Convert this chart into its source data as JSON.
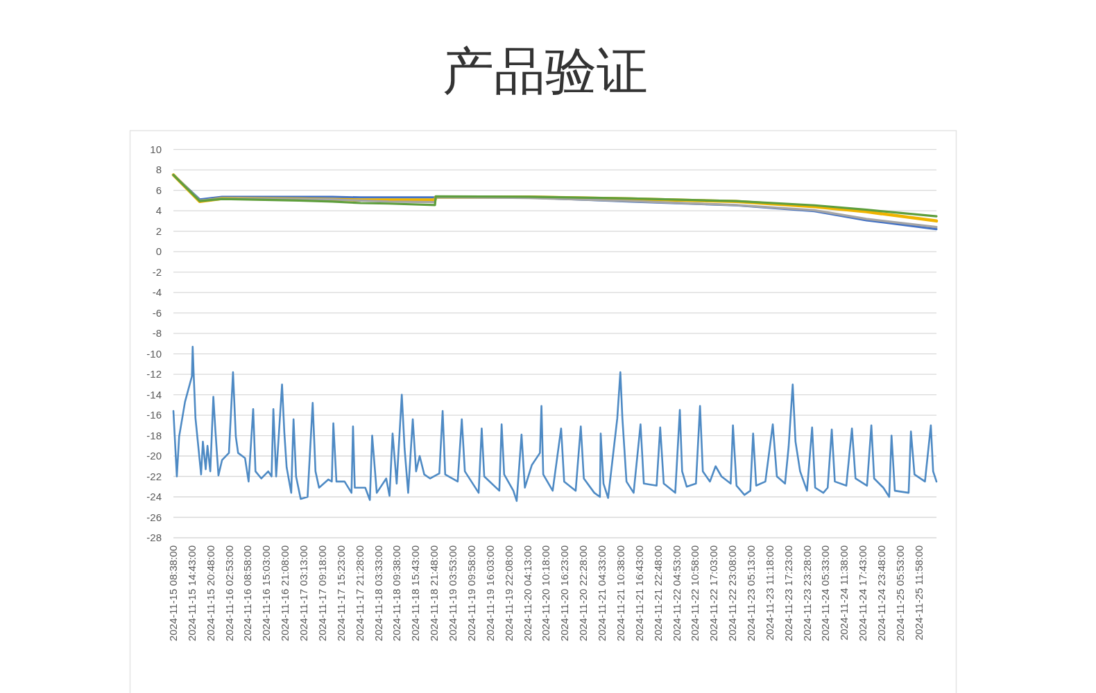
{
  "chart_data": {
    "type": "line",
    "title": "产品验证",
    "xlim": [
      "2024-11-15T08:38",
      "2024-11-25T17:40"
    ],
    "xticks": [
      {
        "value": "2024-11-15T08:38",
        "label": "2024-11-15 08:38:00"
      },
      {
        "value": "2024-11-15T14:43",
        "label": "2024-11-15 14:43:00"
      },
      {
        "value": "2024-11-15T20:48",
        "label": "2024-11-15 20:48:00"
      },
      {
        "value": "2024-11-16T02:53",
        "label": "2024-11-16 02:53:00"
      },
      {
        "value": "2024-11-16T08:58",
        "label": "2024-11-16 08:58:00"
      },
      {
        "value": "2024-11-16T15:03",
        "label": "2024-11-16 15:03:00"
      },
      {
        "value": "2024-11-16T21:08",
        "label": "2024-11-16 21:08:00"
      },
      {
        "value": "2024-11-17T03:13",
        "label": "2024-11-17 03:13:00"
      },
      {
        "value": "2024-11-17T09:18",
        "label": "2024-11-17 09:18:00"
      },
      {
        "value": "2024-11-17T15:23",
        "label": "2024-11-17 15:23:00"
      },
      {
        "value": "2024-11-17T21:28",
        "label": "2024-11-17 21:28:00"
      },
      {
        "value": "2024-11-18T03:33",
        "label": "2024-11-18 03:33:00"
      },
      {
        "value": "2024-11-18T09:38",
        "label": "2024-11-18 09:38:00"
      },
      {
        "value": "2024-11-18T15:43",
        "label": "2024-11-18 15:43:00"
      },
      {
        "value": "2024-11-18T21:48",
        "label": "2024-11-18 21:48:00"
      },
      {
        "value": "2024-11-19T03:53",
        "label": "2024-11-19 03:53:00"
      },
      {
        "value": "2024-11-19T09:58",
        "label": "2024-11-19 09:58:00"
      },
      {
        "value": "2024-11-19T16:03",
        "label": "2024-11-19 16:03:00"
      },
      {
        "value": "2024-11-19T22:08",
        "label": "2024-11-19 22:08:00"
      },
      {
        "value": "2024-11-20T04:13",
        "label": "2024-11-20 04:13:00"
      },
      {
        "value": "2024-11-20T10:18",
        "label": "2024-11-20 10:18:00"
      },
      {
        "value": "2024-11-20T16:23",
        "label": "2024-11-20 16:23:00"
      },
      {
        "value": "2024-11-20T22:28",
        "label": "2024-11-20 22:28:00"
      },
      {
        "value": "2024-11-21T04:33",
        "label": "2024-11-21 04:33:00"
      },
      {
        "value": "2024-11-21T10:38",
        "label": "2024-11-21 10:38:00"
      },
      {
        "value": "2024-11-21T16:43",
        "label": "2024-11-21 16:43:00"
      },
      {
        "value": "2024-11-21T22:48",
        "label": "2024-11-21 22:48:00"
      },
      {
        "value": "2024-11-22T04:53",
        "label": "2024-11-22 04:53:00"
      },
      {
        "value": "2024-11-22T10:58",
        "label": "2024-11-22 10:58:00"
      },
      {
        "value": "2024-11-22T17:03",
        "label": "2024-11-22 17:03:00"
      },
      {
        "value": "2024-11-22T23:08",
        "label": "2024-11-22 23:08:00"
      },
      {
        "value": "2024-11-23T05:13",
        "label": "2024-11-23 05:13:00"
      },
      {
        "value": "2024-11-23T11:18",
        "label": "2024-11-23 11:18:00"
      },
      {
        "value": "2024-11-23T17:23",
        "label": "2024-11-23 17:23:00"
      },
      {
        "value": "2024-11-23T23:28",
        "label": "2024-11-23 23:28:00"
      },
      {
        "value": "2024-11-24T05:33",
        "label": "2024-11-24 05:33:00"
      },
      {
        "value": "2024-11-24T11:38",
        "label": "2024-11-24 11:38:00"
      },
      {
        "value": "2024-11-24T17:43",
        "label": "2024-11-24 17:43:00"
      },
      {
        "value": "2024-11-24T23:48",
        "label": "2024-11-24 23:48:00"
      },
      {
        "value": "2024-11-25T05:53",
        "label": "2024-11-25 05:53:00"
      },
      {
        "value": "2024-11-25T11:58",
        "label": "2024-11-25 11:58:00"
      }
    ],
    "ylim": [
      -28,
      10
    ],
    "yticks": [
      10,
      8,
      6,
      4,
      2,
      0,
      -2,
      -4,
      -6,
      -8,
      -10,
      -12,
      -14,
      -16,
      -18,
      -20,
      -22,
      -24,
      -26,
      -28
    ],
    "grid": "y",
    "series": [
      {
        "color": "#4e8ac4",
        "x": [
          "2024-11-15T08:38",
          "2024-11-15T09:45",
          "2024-11-15T10:30",
          "2024-11-15T12:25",
          "2024-11-15T14:40",
          "2024-11-15T14:55",
          "2024-11-15T15:15",
          "2024-11-15T15:50",
          "2024-11-15T17:40",
          "2024-11-15T18:15",
          "2024-11-15T19:10",
          "2024-11-15T19:45",
          "2024-11-15T20:40",
          "2024-11-15T21:40",
          "2024-11-15T22:20",
          "2024-11-15T23:20",
          "2024-11-16T00:30",
          "2024-11-16T02:45",
          "2024-11-16T04:05",
          "2024-11-16T05:00",
          "2024-11-16T05:45",
          "2024-11-16T08:00",
          "2024-11-16T09:10",
          "2024-11-16T10:40",
          "2024-11-16T11:25",
          "2024-11-16T13:20",
          "2024-11-16T15:35",
          "2024-11-16T16:40",
          "2024-11-16T17:15",
          "2024-11-16T18:10",
          "2024-11-16T20:05",
          "2024-11-16T20:50",
          "2024-11-16T21:35",
          "2024-11-16T23:05",
          "2024-11-16T23:50",
          "2024-11-17T00:40",
          "2024-11-17T02:10",
          "2024-11-17T04:25",
          "2024-11-17T06:05",
          "2024-11-17T07:00",
          "2024-11-17T08:10",
          "2024-11-17T11:10",
          "2024-11-17T12:20",
          "2024-11-17T12:50",
          "2024-11-17T13:50",
          "2024-11-17T16:30",
          "2024-11-17T18:45",
          "2024-11-17T19:15",
          "2024-11-17T19:50",
          "2024-11-17T23:15",
          "2024-11-18T00:45",
          "2024-11-18T01:30",
          "2024-11-18T03:00",
          "2024-11-18T06:05",
          "2024-11-18T07:10",
          "2024-11-18T08:10",
          "2024-11-18T09:30",
          "2024-11-18T11:10",
          "2024-11-18T12:05",
          "2024-11-18T13:15",
          "2024-11-18T14:45",
          "2024-11-18T15:50",
          "2024-11-18T17:00",
          "2024-11-18T18:30",
          "2024-11-18T20:25",
          "2024-11-18T23:25",
          "2024-11-19T00:30",
          "2024-11-19T01:20",
          "2024-11-19T05:25",
          "2024-11-19T06:45",
          "2024-11-19T07:45",
          "2024-11-19T12:15",
          "2024-11-19T13:15",
          "2024-11-19T14:05",
          "2024-11-19T19:00",
          "2024-11-19T19:45",
          "2024-11-19T20:35",
          "2024-11-19T23:35",
          "2024-11-20T00:40",
          "2024-11-20T02:15",
          "2024-11-20T03:20",
          "2024-11-20T05:35",
          "2024-11-20T08:15",
          "2024-11-20T08:45",
          "2024-11-20T09:20",
          "2024-11-20T12:25",
          "2024-11-20T15:10",
          "2024-11-20T16:10",
          "2024-11-20T19:55",
          "2024-11-20T21:35",
          "2024-11-20T22:35",
          "2024-11-21T02:00",
          "2024-11-21T03:50",
          "2024-11-21T04:05",
          "2024-11-21T05:00",
          "2024-11-21T06:30",
          "2024-11-21T09:30",
          "2024-11-21T10:30",
          "2024-11-21T11:10",
          "2024-11-21T12:30",
          "2024-11-21T14:50",
          "2024-11-21T17:05",
          "2024-11-21T18:10",
          "2024-11-21T22:20",
          "2024-11-21T23:30",
          "2024-11-22T00:40",
          "2024-11-22T04:25",
          "2024-11-22T05:55",
          "2024-11-22T06:40",
          "2024-11-22T08:10",
          "2024-11-22T11:10",
          "2024-11-22T12:30",
          "2024-11-22T13:25",
          "2024-11-22T15:45",
          "2024-11-22T17:35",
          "2024-11-22T19:30",
          "2024-11-22T22:30",
          "2024-11-22T23:15",
          "2024-11-23T00:25",
          "2024-11-23T03:00",
          "2024-11-23T04:55",
          "2024-11-23T05:50",
          "2024-11-23T06:50",
          "2024-11-23T09:50",
          "2024-11-23T12:15",
          "2024-11-23T13:35",
          "2024-11-23T16:15",
          "2024-11-23T17:25",
          "2024-11-23T18:45",
          "2024-11-23T19:40",
          "2024-11-23T21:10",
          "2024-11-23T23:25",
          "2024-11-24T01:05",
          "2024-11-24T02:05",
          "2024-11-24T04:45",
          "2024-11-24T06:10",
          "2024-11-24T07:30",
          "2024-11-24T08:30",
          "2024-11-24T12:15",
          "2024-11-24T14:05",
          "2024-11-24T15:15",
          "2024-11-24T19:00",
          "2024-11-24T20:25",
          "2024-11-24T21:20",
          "2024-11-25T00:20",
          "2024-11-25T02:15",
          "2024-11-25T03:00",
          "2024-11-25T04:05",
          "2024-11-25T08:35",
          "2024-11-25T09:20",
          "2024-11-25T10:30",
          "2024-11-25T13:55",
          "2024-11-25T15:50",
          "2024-11-25T16:35",
          "2024-11-25T17:40"
        ],
        "values": [
          -15.6,
          -22.0,
          -18.1,
          -14.7,
          -12.2,
          -9.3,
          -12.0,
          -16.3,
          -21.8,
          -18.6,
          -21.3,
          -19.0,
          -21.5,
          -14.2,
          -17.5,
          -21.9,
          -20.4,
          -19.7,
          -11.8,
          -18.1,
          -19.7,
          -20.2,
          -22.5,
          -15.4,
          -21.5,
          -22.2,
          -21.5,
          -22.0,
          -15.4,
          -22.0,
          -13.0,
          -17.7,
          -21.1,
          -23.6,
          -16.4,
          -22.0,
          -24.2,
          -24.0,
          -14.8,
          -21.5,
          -23.1,
          -22.3,
          -22.5,
          -16.8,
          -22.5,
          -22.5,
          -23.6,
          -17.1,
          -23.1,
          -23.1,
          -24.3,
          -18.0,
          -23.6,
          -22.2,
          -23.9,
          -17.8,
          -22.7,
          -14.0,
          -19.3,
          -23.6,
          -16.4,
          -21.5,
          -20.0,
          -21.8,
          -22.2,
          -21.7,
          -15.6,
          -21.8,
          -22.5,
          -16.4,
          -21.5,
          -23.6,
          -17.3,
          -22.0,
          -23.4,
          -16.9,
          -21.8,
          -23.4,
          -24.4,
          -17.9,
          -23.1,
          -20.9,
          -19.7,
          -15.1,
          -21.8,
          -23.4,
          -17.3,
          -22.5,
          -23.4,
          -17.1,
          -22.2,
          -23.6,
          -24.0,
          -17.8,
          -22.7,
          -24.1,
          -16.3,
          -11.8,
          -16.3,
          -22.5,
          -23.6,
          -16.9,
          -22.7,
          -22.9,
          -17.2,
          -22.7,
          -23.6,
          -15.5,
          -21.5,
          -23.0,
          -22.7,
          -15.1,
          -21.5,
          -22.5,
          -21.0,
          -22.0,
          -22.7,
          -17.0,
          -22.9,
          -23.8,
          -23.4,
          -17.8,
          -22.9,
          -22.5,
          -16.9,
          -22.0,
          -22.7,
          -19.1,
          -13.0,
          -18.6,
          -21.5,
          -23.4,
          -17.2,
          -23.1,
          -23.6,
          -23.1,
          -17.4,
          -22.5,
          -22.9,
          -17.3,
          -22.2,
          -22.9,
          -17.0,
          -22.2,
          -23.1,
          -24.0,
          -18.0,
          -23.4,
          -23.6,
          -17.6,
          -21.8,
          -22.5,
          -17.0,
          -21.5,
          -22.5
        ]
      },
      {
        "color": "#4472c4",
        "x": [
          "2024-11-15T08:38",
          "2024-11-15T17:15",
          "2024-11-16T00:30",
          "2024-11-17T01:35",
          "2024-11-17T12:30",
          "2024-11-17T21:45",
          "2024-11-18T06:50",
          "2024-11-18T22:00",
          "2024-11-20T04:05",
          "2024-11-21T14:05",
          "2024-11-23T00:15",
          "2024-11-24T01:50",
          "2024-11-24T18:50",
          "2024-11-25T17:40"
        ],
        "values": [
          7.5,
          5.1,
          5.35,
          5.35,
          5.35,
          5.3,
          5.3,
          5.3,
          5.3,
          4.9,
          4.53,
          3.96,
          3.07,
          2.2
        ]
      },
      {
        "color": "#f0b400",
        "x": [
          "2024-11-15T08:38",
          "2024-11-15T17:15",
          "2024-11-16T00:30",
          "2024-11-17T01:35",
          "2024-11-17T12:30",
          "2024-11-17T21:45",
          "2024-11-18T06:50",
          "2024-11-18T22:00",
          "2024-11-18T22:15",
          "2024-11-20T04:05",
          "2024-11-21T14:05",
          "2024-11-23T00:15",
          "2024-11-24T01:50",
          "2024-11-24T18:50",
          "2024-11-25T17:40"
        ],
        "values": [
          7.5,
          4.9,
          5.2,
          5.15,
          5.1,
          5.05,
          5.05,
          5.05,
          5.35,
          5.35,
          5.15,
          4.9,
          4.4,
          3.9,
          3.0
        ]
      },
      {
        "color": "#a5a5a5",
        "x": [
          "2024-11-15T08:38",
          "2024-11-15T17:15",
          "2024-11-16T00:30",
          "2024-11-17T01:35",
          "2024-11-17T12:30",
          "2024-11-17T21:45",
          "2024-11-18T06:50",
          "2024-11-18T22:00",
          "2024-11-18T22:15",
          "2024-11-20T04:05",
          "2024-11-21T14:05",
          "2024-11-23T00:15",
          "2024-11-24T01:50",
          "2024-11-24T18:50",
          "2024-11-25T17:40"
        ],
        "values": [
          7.5,
          5.0,
          5.2,
          5.15,
          5.1,
          5.0,
          4.9,
          4.85,
          5.35,
          5.25,
          4.95,
          4.55,
          4.05,
          3.2,
          2.4
        ]
      },
      {
        "color": "#5e9e3c",
        "x": [
          "2024-11-15T08:38",
          "2024-11-15T17:15",
          "2024-11-16T00:30",
          "2024-11-17T01:35",
          "2024-11-17T12:30",
          "2024-11-17T21:45",
          "2024-11-18T06:50",
          "2024-11-18T22:00",
          "2024-11-18T22:15",
          "2024-11-20T04:05",
          "2024-11-21T14:05",
          "2024-11-23T00:15",
          "2024-11-24T01:50",
          "2024-11-24T18:50",
          "2024-11-25T17:40"
        ],
        "values": [
          7.5,
          4.95,
          5.15,
          5.0,
          4.9,
          4.75,
          4.7,
          4.55,
          5.4,
          5.37,
          5.2,
          4.94,
          4.53,
          4.1,
          3.45
        ]
      }
    ]
  }
}
